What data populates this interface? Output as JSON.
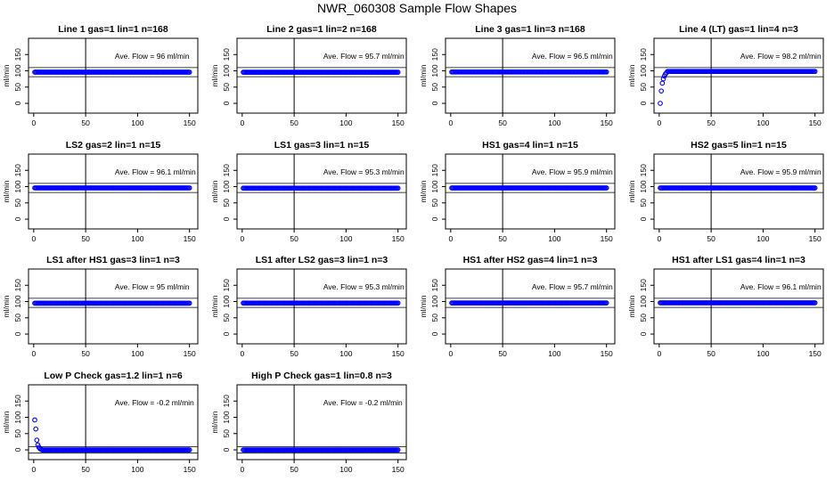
{
  "page": {
    "title": "NWR_060308  Sample Flow Shapes"
  },
  "colors": {
    "points": "#0000ff",
    "lines": "#000000"
  },
  "chart_data": [
    {
      "type": "scatter",
      "title": "Line 1 gas=1 lin=1 n=168",
      "ylabel": "ml/min",
      "annotation": "Ave. Flow =  96  ml/min",
      "xlim": [
        -5,
        158
      ],
      "ylim": [
        -30,
        200
      ],
      "xticks": [
        "0",
        "50",
        "100",
        "150"
      ],
      "yticks": [
        "0",
        "50",
        "100",
        "150"
      ],
      "vline_x": 50,
      "hlines_y": [
        110,
        82
      ],
      "series": [
        {
          "shape": "flat",
          "steady": 96,
          "start": 1,
          "end": 150,
          "step": 1
        }
      ]
    },
    {
      "type": "scatter",
      "title": "Line 2 gas=1 lin=2 n=168",
      "ylabel": "ml/min",
      "annotation": "Ave. Flow =  95.7  ml/min",
      "xlim": [
        -5,
        158
      ],
      "ylim": [
        -30,
        200
      ],
      "xticks": [
        "0",
        "50",
        "100",
        "150"
      ],
      "yticks": [
        "0",
        "50",
        "100",
        "150"
      ],
      "vline_x": 50,
      "hlines_y": [
        110,
        82
      ],
      "series": [
        {
          "shape": "flat",
          "steady": 95.7,
          "start": 1,
          "end": 150,
          "step": 1
        }
      ]
    },
    {
      "type": "scatter",
      "title": "Line 3 gas=1 lin=3 n=168",
      "ylabel": "ml/min",
      "annotation": "Ave. Flow =  96.5  ml/min",
      "xlim": [
        -5,
        158
      ],
      "ylim": [
        -30,
        200
      ],
      "xticks": [
        "0",
        "50",
        "100",
        "150"
      ],
      "yticks": [
        "0",
        "50",
        "100",
        "150"
      ],
      "vline_x": 50,
      "hlines_y": [
        110,
        82
      ],
      "series": [
        {
          "shape": "flat",
          "steady": 96.5,
          "start": 1,
          "end": 150,
          "step": 1
        }
      ]
    },
    {
      "type": "scatter",
      "title": "Line 4 (LT) gas=1 lin=4 n=3",
      "ylabel": "ml/min",
      "annotation": "Ave. Flow =  98.2  ml/min",
      "xlim": [
        -5,
        158
      ],
      "ylim": [
        -30,
        200
      ],
      "xticks": [
        "0",
        "50",
        "100",
        "150"
      ],
      "yticks": [
        "0",
        "50",
        "100",
        "150"
      ],
      "vline_x": 50,
      "hlines_y": [
        110,
        82
      ],
      "series": [
        {
          "shape": "rise",
          "steady": 98.2,
          "start": 1,
          "end": 150,
          "step": 1,
          "initial_points": [
            [
              1,
              0
            ],
            [
              2,
              38
            ],
            [
              3,
              62
            ],
            [
              4,
              75
            ],
            [
              5,
              84
            ],
            [
              6,
              90
            ],
            [
              7,
              94
            ]
          ]
        }
      ]
    },
    {
      "type": "scatter",
      "title": "LS2 gas=2 lin=1 n=15",
      "ylabel": "ml/min",
      "annotation": "Ave. Flow =  96.1  ml/min",
      "xlim": [
        -5,
        158
      ],
      "ylim": [
        -30,
        200
      ],
      "xticks": [
        "0",
        "50",
        "100",
        "150"
      ],
      "yticks": [
        "0",
        "50",
        "100",
        "150"
      ],
      "vline_x": 50,
      "hlines_y": [
        110,
        82
      ],
      "series": [
        {
          "shape": "flat",
          "steady": 96.1,
          "start": 1,
          "end": 150,
          "step": 1
        }
      ]
    },
    {
      "type": "scatter",
      "title": "LS1 gas=3 lin=1 n=15",
      "ylabel": "ml/min",
      "annotation": "Ave. Flow =  95.3  ml/min",
      "xlim": [
        -5,
        158
      ],
      "ylim": [
        -30,
        200
      ],
      "xticks": [
        "0",
        "50",
        "100",
        "150"
      ],
      "yticks": [
        "0",
        "50",
        "100",
        "150"
      ],
      "vline_x": 50,
      "hlines_y": [
        110,
        82
      ],
      "series": [
        {
          "shape": "flat",
          "steady": 95.3,
          "start": 1,
          "end": 150,
          "step": 1
        }
      ]
    },
    {
      "type": "scatter",
      "title": "HS1 gas=4 lin=1 n=15",
      "ylabel": "ml/min",
      "annotation": "Ave. Flow =  95.9  ml/min",
      "xlim": [
        -5,
        158
      ],
      "ylim": [
        -30,
        200
      ],
      "xticks": [
        "0",
        "50",
        "100",
        "150"
      ],
      "yticks": [
        "0",
        "50",
        "100",
        "150"
      ],
      "vline_x": 50,
      "hlines_y": [
        110,
        82
      ],
      "series": [
        {
          "shape": "flat",
          "steady": 95.9,
          "start": 1,
          "end": 150,
          "step": 1
        }
      ]
    },
    {
      "type": "scatter",
      "title": "HS2 gas=5 lin=1 n=15",
      "ylabel": "ml/min",
      "annotation": "Ave. Flow =  95.9  ml/min",
      "xlim": [
        -5,
        158
      ],
      "ylim": [
        -30,
        200
      ],
      "xticks": [
        "0",
        "50",
        "100",
        "150"
      ],
      "yticks": [
        "0",
        "50",
        "100",
        "150"
      ],
      "vline_x": 50,
      "hlines_y": [
        110,
        82
      ],
      "series": [
        {
          "shape": "flat",
          "steady": 95.9,
          "start": 1,
          "end": 150,
          "step": 1
        }
      ]
    },
    {
      "type": "scatter",
      "title": "LS1 after HS1 gas=3 lin=1 n=3",
      "ylabel": "ml/min",
      "annotation": "Ave. Flow =  95  ml/min",
      "xlim": [
        -5,
        158
      ],
      "ylim": [
        -30,
        200
      ],
      "xticks": [
        "0",
        "50",
        "100",
        "150"
      ],
      "yticks": [
        "0",
        "50",
        "100",
        "150"
      ],
      "vline_x": 50,
      "hlines_y": [
        110,
        82
      ],
      "series": [
        {
          "shape": "flat",
          "steady": 95,
          "start": 1,
          "end": 150,
          "step": 1
        }
      ]
    },
    {
      "type": "scatter",
      "title": "LS1 after LS2 gas=3 lin=1 n=3",
      "ylabel": "ml/min",
      "annotation": "Ave. Flow =  95.3  ml/min",
      "xlim": [
        -5,
        158
      ],
      "ylim": [
        -30,
        200
      ],
      "xticks": [
        "0",
        "50",
        "100",
        "150"
      ],
      "yticks": [
        "0",
        "50",
        "100",
        "150"
      ],
      "vline_x": 50,
      "hlines_y": [
        110,
        82
      ],
      "series": [
        {
          "shape": "flat",
          "steady": 95.3,
          "start": 1,
          "end": 150,
          "step": 1
        }
      ]
    },
    {
      "type": "scatter",
      "title": "HS1 after HS2 gas=4 lin=1 n=3",
      "ylabel": "ml/min",
      "annotation": "Ave. Flow =  95.7  ml/min",
      "xlim": [
        -5,
        158
      ],
      "ylim": [
        -30,
        200
      ],
      "xticks": [
        "0",
        "50",
        "100",
        "150"
      ],
      "yticks": [
        "0",
        "50",
        "100",
        "150"
      ],
      "vline_x": 50,
      "hlines_y": [
        110,
        82
      ],
      "series": [
        {
          "shape": "flat",
          "steady": 95.7,
          "start": 1,
          "end": 150,
          "step": 1
        }
      ]
    },
    {
      "type": "scatter",
      "title": "HS1 after LS1 gas=4 lin=1 n=3",
      "ylabel": "ml/min",
      "annotation": "Ave. Flow =  96.1  ml/min",
      "xlim": [
        -5,
        158
      ],
      "ylim": [
        -30,
        200
      ],
      "xticks": [
        "0",
        "50",
        "100",
        "150"
      ],
      "yticks": [
        "0",
        "50",
        "100",
        "150"
      ],
      "vline_x": 50,
      "hlines_y": [
        110,
        82
      ],
      "series": [
        {
          "shape": "flat",
          "steady": 96.1,
          "start": 1,
          "end": 150,
          "step": 1
        }
      ]
    },
    {
      "type": "scatter",
      "title": "Low P Check gas=1.2 lin=1 n=6",
      "ylabel": "ml/min",
      "annotation": "Ave. Flow =  -0.2  ml/min",
      "xlim": [
        -5,
        158
      ],
      "ylim": [
        -30,
        200
      ],
      "xticks": [
        "0",
        "50",
        "100",
        "150"
      ],
      "yticks": [
        "0",
        "50",
        "100",
        "150"
      ],
      "vline_x": 50,
      "hlines_y": [
        10,
        -10
      ],
      "series": [
        {
          "shape": "decay",
          "steady": -0.2,
          "start": 1,
          "end": 150,
          "step": 1,
          "initial_points": [
            [
              1,
              92
            ],
            [
              2,
              64
            ],
            [
              3,
              30
            ],
            [
              4,
              15
            ],
            [
              5,
              8
            ],
            [
              6,
              4
            ],
            [
              7,
              2
            ]
          ]
        }
      ]
    },
    {
      "type": "scatter",
      "title": "High P Check gas=1 lin=0.8 n=3",
      "ylabel": "ml/min",
      "annotation": "Ave. Flow =  -0.2  ml/min",
      "xlim": [
        -5,
        158
      ],
      "ylim": [
        -30,
        200
      ],
      "xticks": [
        "0",
        "50",
        "100",
        "150"
      ],
      "yticks": [
        "0",
        "50",
        "100",
        "150"
      ],
      "vline_x": 50,
      "hlines_y": [
        10,
        -10
      ],
      "series": [
        {
          "shape": "flat",
          "steady": -0.2,
          "start": 1,
          "end": 150,
          "step": 1
        }
      ]
    }
  ]
}
